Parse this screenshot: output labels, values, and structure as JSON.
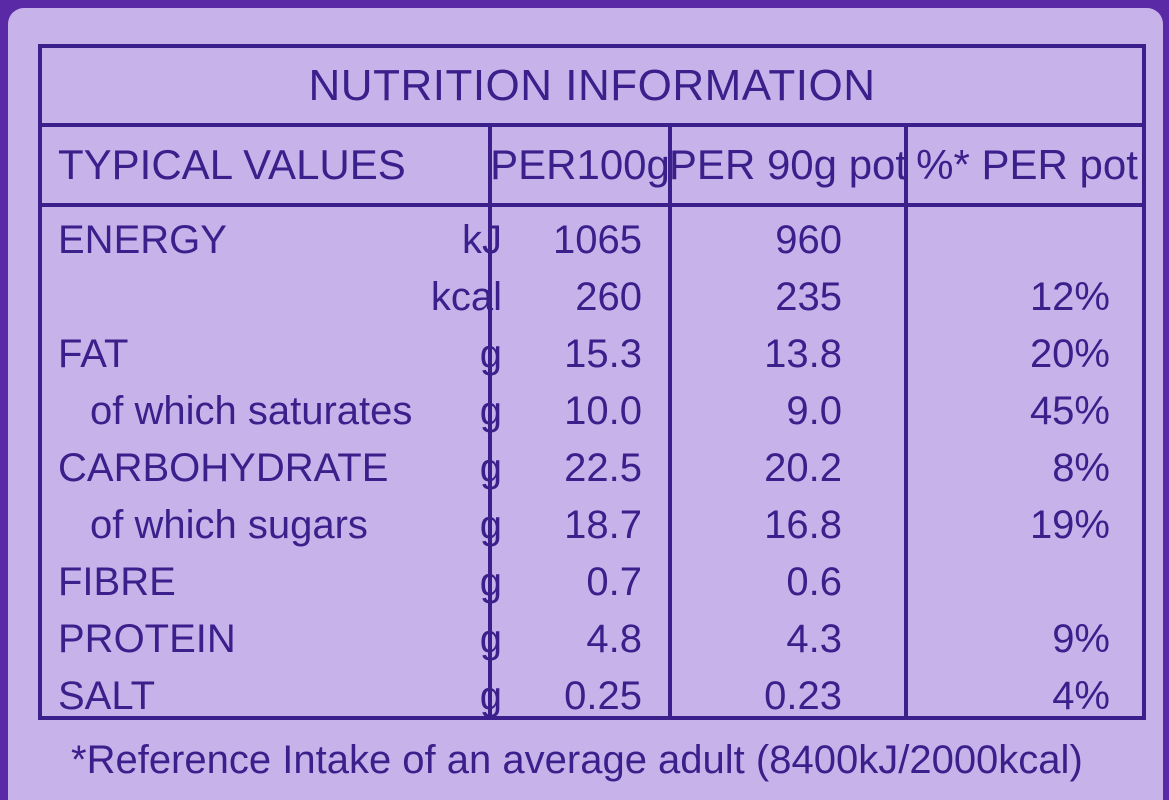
{
  "title": "NUTRITION INFORMATION",
  "headers": {
    "typical_values": "TYPICAL VALUES",
    "per_100g": "PER100g",
    "per_90g_pot": "PER 90g pot",
    "percent_per_pot": "%* PER pot"
  },
  "rows": [
    {
      "label": "ENERGY",
      "unit": "kJ",
      "per_100g": "1065",
      "per_90g_pot": "960",
      "percent_per_pot": ""
    },
    {
      "label": "",
      "unit": "kcal",
      "per_100g": "260",
      "per_90g_pot": "235",
      "percent_per_pot": "12%"
    },
    {
      "label": "FAT",
      "unit": "g",
      "per_100g": "15.3",
      "per_90g_pot": "13.8",
      "percent_per_pot": "20%"
    },
    {
      "label": "of which saturates",
      "unit": "g",
      "per_100g": "10.0",
      "per_90g_pot": "9.0",
      "percent_per_pot": "45%"
    },
    {
      "label": "CARBOHYDRATE",
      "unit": "g",
      "per_100g": "22.5",
      "per_90g_pot": "20.2",
      "percent_per_pot": "8%"
    },
    {
      "label": "of which sugars",
      "unit": "g",
      "per_100g": "18.7",
      "per_90g_pot": "16.8",
      "percent_per_pot": "19%"
    },
    {
      "label": "FIBRE",
      "unit": "g",
      "per_100g": "0.7",
      "per_90g_pot": "0.6",
      "percent_per_pot": ""
    },
    {
      "label": "PROTEIN",
      "unit": "g",
      "per_100g": "4.8",
      "per_90g_pot": "4.3",
      "percent_per_pot": "9%"
    },
    {
      "label": "SALT",
      "unit": "g",
      "per_100g": "0.25",
      "per_90g_pot": "0.23",
      "percent_per_pot": "4%"
    }
  ],
  "footnote": "*Reference Intake of an average adult (8400kJ/2000kcal)",
  "colors": {
    "outer_border": "#5a2aa6",
    "panel_background": "#c7b2ea",
    "ink": "#3b1f8a"
  }
}
